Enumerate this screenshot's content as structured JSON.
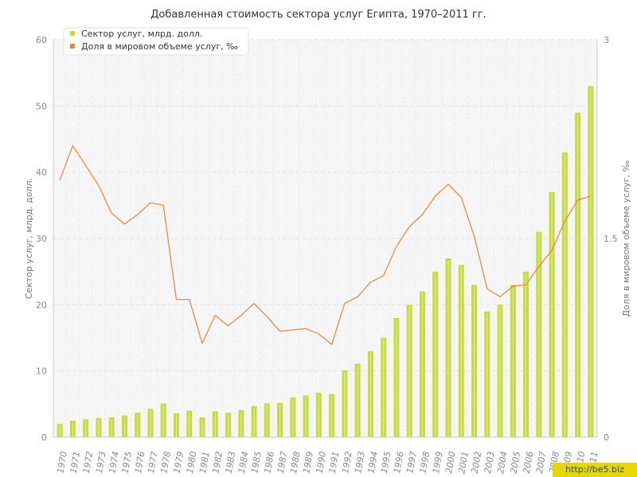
{
  "chart_data": {
    "type": "bar",
    "title": "Добавленная стоимость сектора услуг Египта, 1970–2011 гг.",
    "ylabel": "Сектор услуг, млрд. долл.",
    "y2label": "Доля в мировом объеме услуг, ‰",
    "ylim": [
      0,
      60
    ],
    "y2lim": [
      0,
      3
    ],
    "yticks": [
      "0",
      "10",
      "20",
      "30",
      "40",
      "50",
      "60"
    ],
    "y2ticks": [
      "0",
      "1.5",
      "3"
    ],
    "grid": true,
    "legend_position": "top-left",
    "categories": [
      "1970",
      "1971",
      "1972",
      "1973",
      "1974",
      "1975",
      "1976",
      "1977",
      "1978",
      "1979",
      "1980",
      "1981",
      "1982",
      "1983",
      "1984",
      "1985",
      "1986",
      "1987",
      "1988",
      "1989",
      "1990",
      "1991",
      "1992",
      "1993",
      "1994",
      "1995",
      "1996",
      "1997",
      "1998",
      "1999",
      "2000",
      "2001",
      "2002",
      "2003",
      "2004",
      "2005",
      "2006",
      "2007",
      "2008",
      "2009",
      "2010",
      "2011"
    ],
    "series": [
      {
        "name": "Сектор услуг, млрд. долл.",
        "type": "bar",
        "axis": "left",
        "color": "#c5dc3f",
        "values": [
          2.0,
          2.5,
          2.7,
          2.9,
          3.0,
          3.3,
          3.7,
          4.3,
          5.1,
          3.6,
          4.0,
          3.0,
          3.9,
          3.7,
          4.1,
          4.7,
          5.1,
          5.2,
          6.0,
          6.3,
          6.7,
          6.5,
          10.1,
          11.1,
          13.0,
          15.0,
          18.0,
          20.0,
          22.0,
          25.0,
          27.0,
          26.0,
          23.0,
          19.0,
          20.0,
          23.0,
          25.0,
          31.0,
          37.0,
          43.0,
          49.0,
          53.0
        ]
      },
      {
        "name": "Доля в мировом объеме услуг, ‰",
        "type": "line",
        "axis": "right",
        "color": "#e8823e",
        "values": [
          1.94,
          2.2,
          2.05,
          1.9,
          1.69,
          1.61,
          1.68,
          1.77,
          1.75,
          1.04,
          1.04,
          0.71,
          0.92,
          0.84,
          0.92,
          1.01,
          0.91,
          0.8,
          0.81,
          0.82,
          0.78,
          0.7,
          1.01,
          1.06,
          1.17,
          1.22,
          1.44,
          1.59,
          1.68,
          1.82,
          1.91,
          1.81,
          1.52,
          1.12,
          1.06,
          1.14,
          1.15,
          1.29,
          1.41,
          1.63,
          1.79,
          1.82
        ]
      }
    ]
  },
  "watermark": "http://be5.biz"
}
